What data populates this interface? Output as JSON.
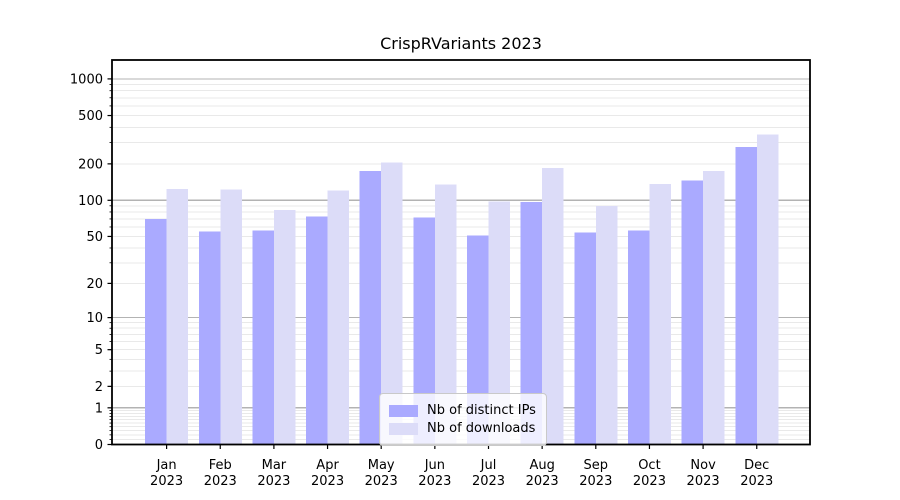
{
  "chart_data": {
    "type": "bar",
    "title": "CrispRVariants 2023",
    "categories": [
      "Jan",
      "Feb",
      "Mar",
      "Apr",
      "May",
      "Jun",
      "Jul",
      "Aug",
      "Sep",
      "Oct",
      "Nov",
      "Dec"
    ],
    "category_year_line": "2023",
    "series": [
      {
        "name": "Nb of distinct IPs",
        "color": "#aaaaff",
        "values": [
          70,
          55,
          56,
          73,
          174,
          72,
          51,
          97,
          54,
          56,
          146,
          276
        ]
      },
      {
        "name": "Nb of downloads",
        "color": "#dcdcf8",
        "values": [
          124,
          123,
          83,
          121,
          205,
          135,
          98,
          185,
          90,
          137,
          174,
          349
        ]
      }
    ],
    "y_ticks": [
      0,
      1,
      2,
      5,
      10,
      20,
      50,
      100,
      200,
      500,
      1000
    ],
    "y_scale": "log1p",
    "ylim": [
      0,
      1430
    ],
    "grid": true,
    "legend_position": "bottom-center",
    "colors": {
      "grid_major": "#b3b3b3",
      "grid_minor": "#e9e9e9",
      "axis": "#000000",
      "tick_label": "#000000",
      "legend_border": "#c9c9c9"
    }
  }
}
